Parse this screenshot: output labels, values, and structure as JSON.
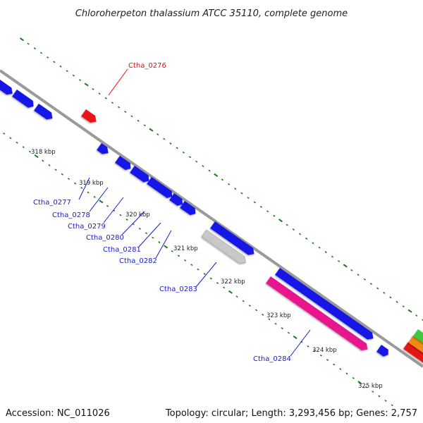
{
  "title": "Chloroherpeton thalassium ATCC 35110, complete genome",
  "footer": {
    "accession": "Accession: NC_011026",
    "stats": "Topology: circular; Length: 3,293,456 bp; Genes: 2,757"
  },
  "colors": {
    "backbone": "#8a8a8a",
    "tick": "#1a7a1a",
    "gene_blue": "#1414e6",
    "gene_red": "#e61414",
    "gene_grey": "#c8c8c8",
    "gene_pink": "#e8148c",
    "label_blue": "#1a1acc",
    "label_red": "#e01010"
  },
  "kbp_labels": [
    "318 kbp",
    "319 kbp",
    "320 kbp",
    "321 kbp",
    "322 kbp",
    "323 kbp",
    "324 kbp",
    "325 kbp"
  ],
  "gene_labels": [
    "Ctha_0276",
    "Ctha_0277",
    "Ctha_0278",
    "Ctha_0279",
    "Ctha_0280",
    "Ctha_0281",
    "Ctha_0282",
    "Ctha_0283",
    "Ctha_0284"
  ],
  "genes": [
    {
      "color": "blue"
    },
    {
      "color": "blue"
    },
    {
      "color": "blue"
    },
    {
      "color": "red",
      "label": "Ctha_0276"
    },
    {
      "color": "blue",
      "label": "Ctha_0277"
    },
    {
      "color": "blue",
      "label": "Ctha_0278"
    },
    {
      "color": "blue",
      "label": "Ctha_0279"
    },
    {
      "color": "blue",
      "label": "Ctha_0280"
    },
    {
      "color": "blue",
      "label": "Ctha_0281"
    },
    {
      "color": "blue",
      "label": "Ctha_0282"
    },
    {
      "color": "blue"
    },
    {
      "color": "grey",
      "label": "Ctha_0283"
    },
    {
      "color": "blue"
    },
    {
      "color": "pink",
      "label": "Ctha_0284"
    },
    {
      "color": "blue"
    },
    {
      "color": "red"
    },
    {
      "color": "orange"
    },
    {
      "color": "green"
    }
  ]
}
